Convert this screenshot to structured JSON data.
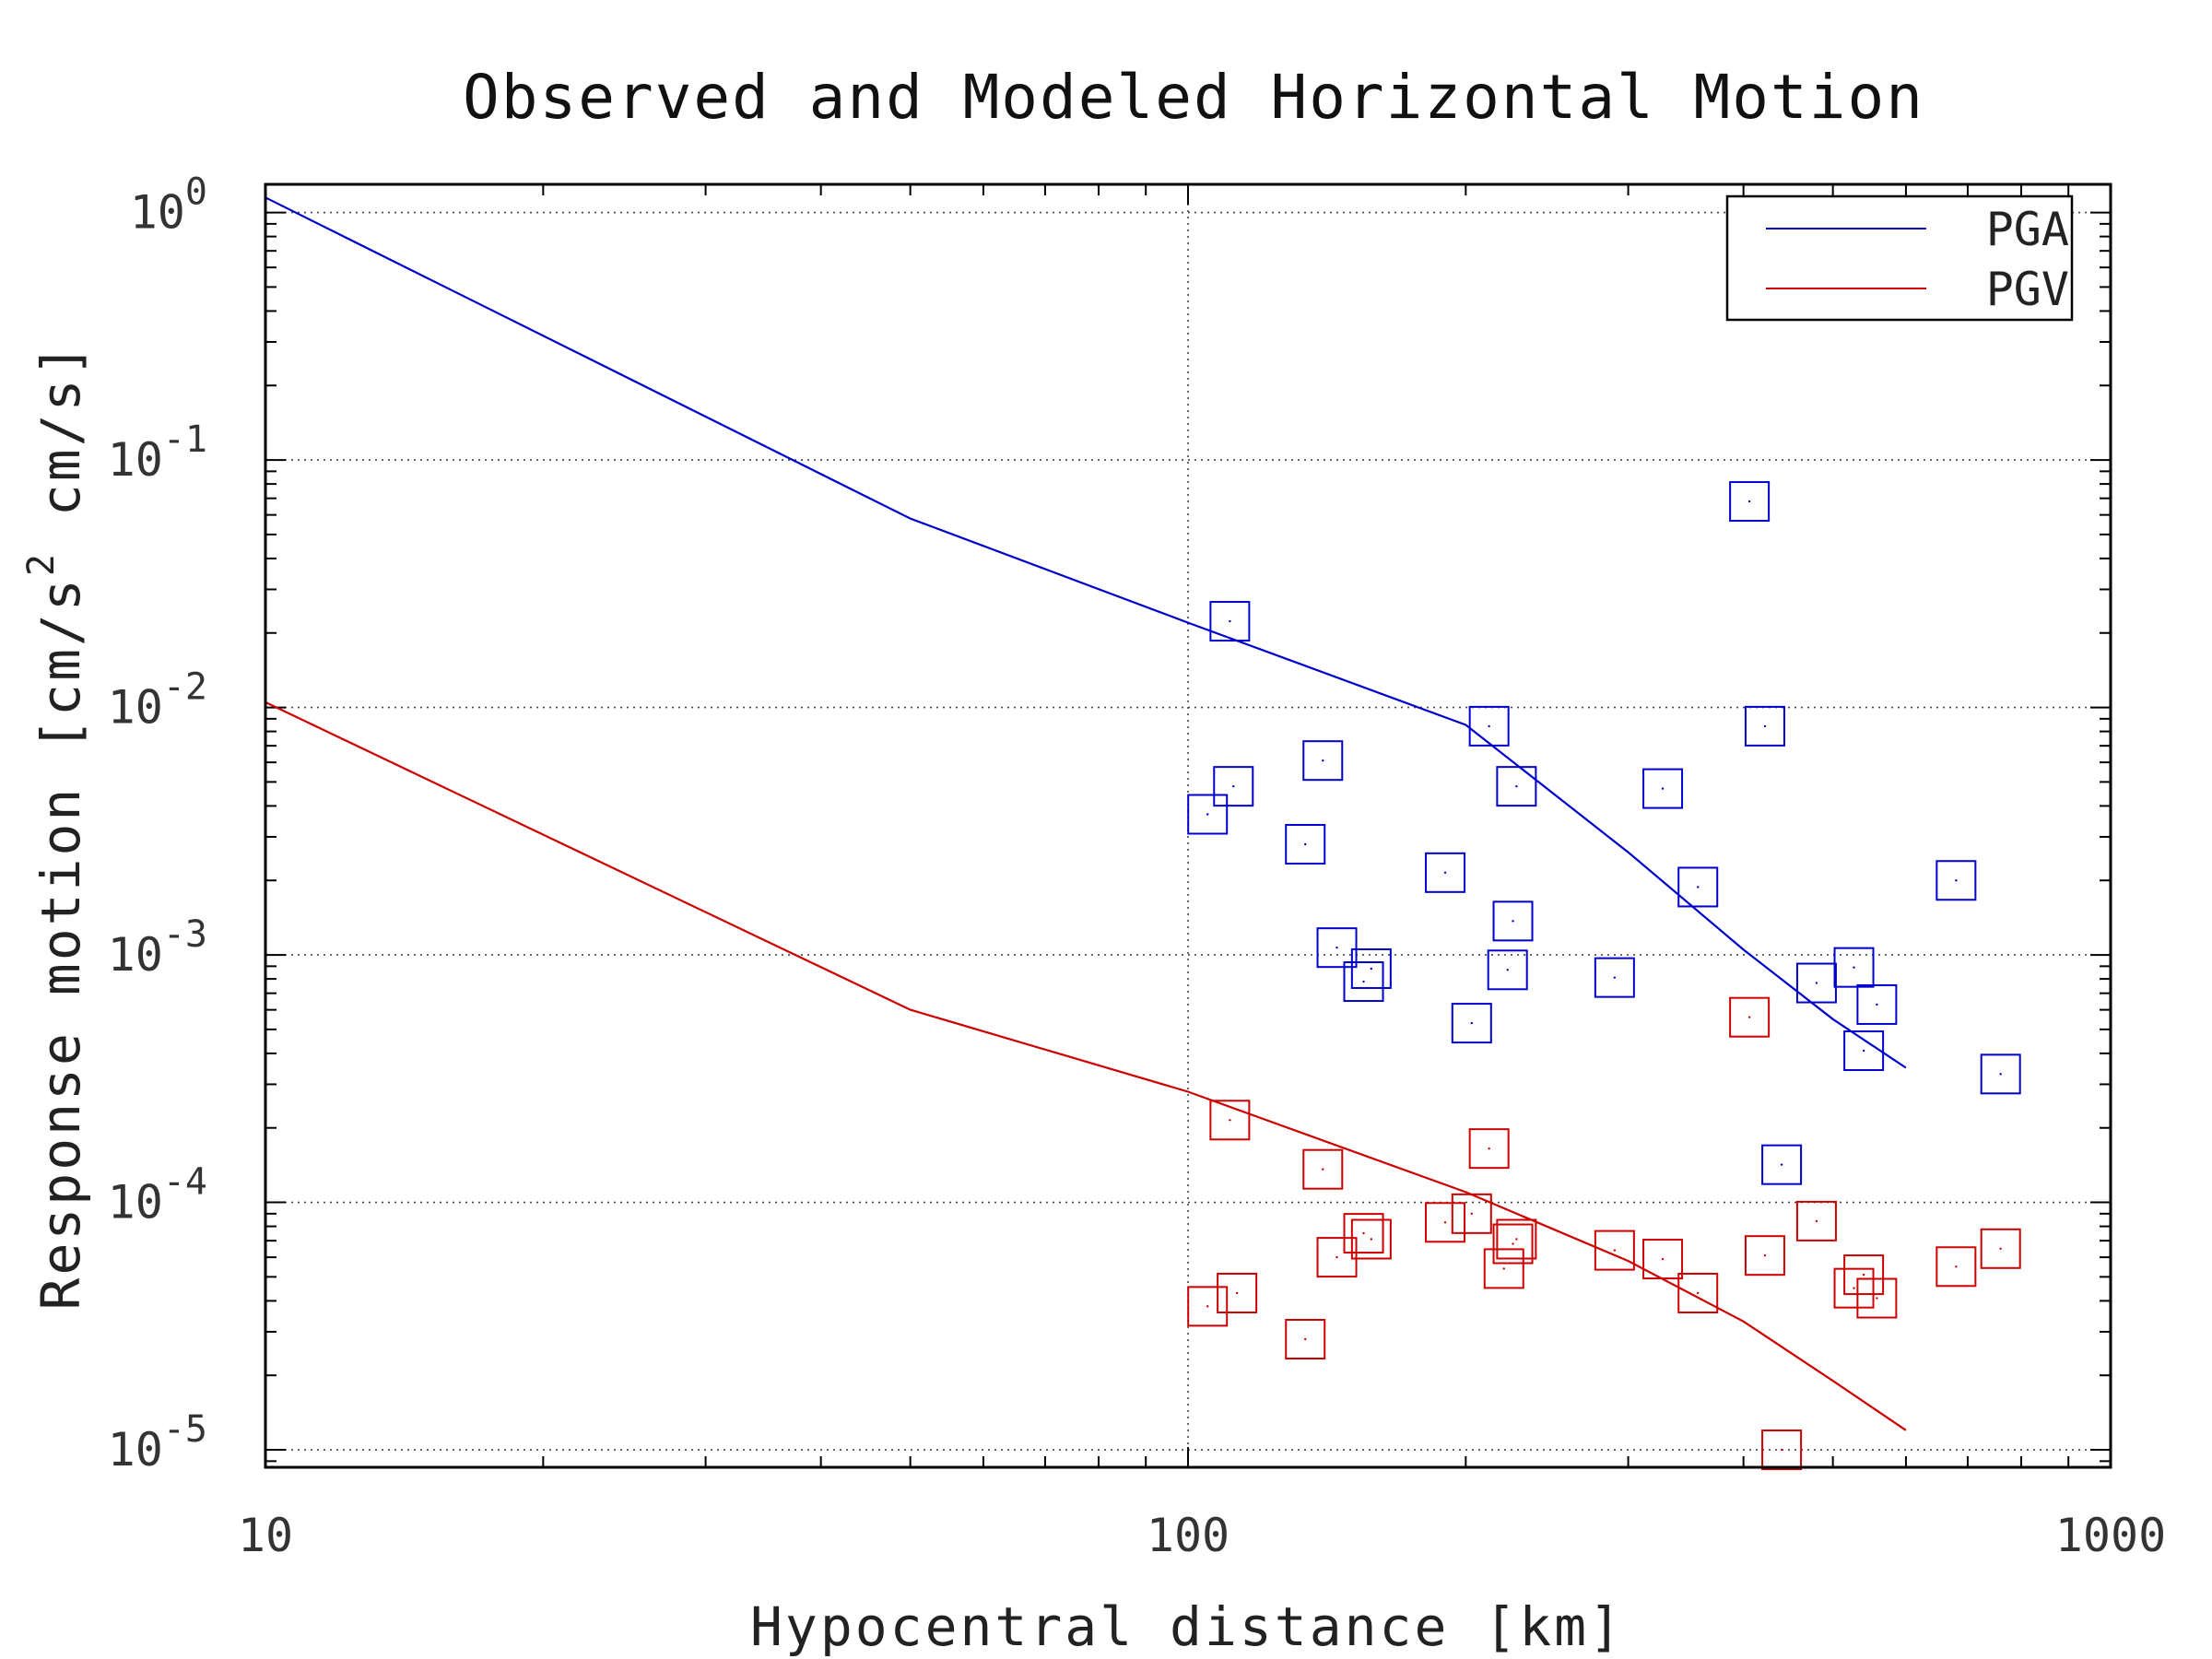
{
  "chart_data": {
    "type": "scatter",
    "title": "Observed and Modeled Horizontal Motion",
    "xlabel": "Hypocentral distance [km]",
    "ylabel_parts": {
      "main": "Response motion  [cm/s",
      "sup": "2",
      "tail": "  cm/s]"
    },
    "x_scale": "log",
    "y_scale": "log",
    "xlim": [
      10,
      1000
    ],
    "ylim": [
      8.5e-06,
      1.3
    ],
    "x_ticks": [
      {
        "value": 10,
        "label": "10"
      },
      {
        "value": 100,
        "label": "100"
      },
      {
        "value": 1000,
        "label": "1000"
      }
    ],
    "y_ticks": [
      {
        "value": 1,
        "base": "10",
        "exp": "0"
      },
      {
        "value": 0.1,
        "base": "10",
        "exp": "-1"
      },
      {
        "value": 0.01,
        "base": "10",
        "exp": "-2"
      },
      {
        "value": 0.001,
        "base": "10",
        "exp": "-3"
      },
      {
        "value": 0.0001,
        "base": "10",
        "exp": "-4"
      },
      {
        "value": 1e-05,
        "base": "10",
        "exp": "-5"
      }
    ],
    "grid": true,
    "legend_position": "top-right",
    "legend": [
      {
        "label": "PGA",
        "color": "#0000cc"
      },
      {
        "label": "PGV",
        "color": "#cc0000"
      }
    ],
    "model_lines": [
      {
        "name": "PGA",
        "color": "#0000cc",
        "x": [
          10,
          50,
          100,
          200,
          300,
          400,
          500,
          600
        ],
        "y": [
          1.15,
          0.058,
          0.022,
          0.0085,
          0.0026,
          0.00105,
          0.00055,
          0.00035
        ]
      },
      {
        "name": "PGV",
        "color": "#cc0000",
        "x": [
          10,
          50,
          100,
          200,
          300,
          400,
          500,
          600
        ],
        "y": [
          0.0105,
          0.0006,
          0.00028,
          0.00011,
          5.8e-05,
          3.3e-05,
          1.9e-05,
          1.2e-05
        ]
      }
    ],
    "observed": [
      {
        "name": "PGA",
        "color": "#0000cc",
        "points": [
          [
            105,
            0.0037
          ],
          [
            111,
            0.0223
          ],
          [
            112,
            0.0048
          ],
          [
            134,
            0.0028
          ],
          [
            140,
            0.0061
          ],
          [
            145,
            0.00107
          ],
          [
            155,
            0.00078
          ],
          [
            158,
            0.00088
          ],
          [
            190,
            0.00215
          ],
          [
            203,
            0.00053
          ],
          [
            212,
            0.0084
          ],
          [
            222,
            0.00087
          ],
          [
            225,
            0.00137
          ],
          [
            227,
            0.0048
          ],
          [
            290,
            0.00081
          ],
          [
            327,
            0.0047
          ],
          [
            357,
            0.00188
          ],
          [
            406,
            0.068
          ],
          [
            422,
            0.0084
          ],
          [
            440,
            0.000142
          ],
          [
            480,
            0.00077
          ],
          [
            527,
            0.00089
          ],
          [
            540,
            0.00041
          ],
          [
            558,
            0.00063
          ],
          [
            680,
            0.002
          ],
          [
            760,
            0.00033
          ]
        ]
      },
      {
        "name": "PGV",
        "color": "#cc0000",
        "points": [
          [
            105,
            3.8e-05
          ],
          [
            111,
            0.000215
          ],
          [
            113,
            4.3e-05
          ],
          [
            134,
            2.8e-05
          ],
          [
            140,
            0.000136
          ],
          [
            145,
            6e-05
          ],
          [
            155,
            7.5e-05
          ],
          [
            158,
            7.1e-05
          ],
          [
            190,
            8.3e-05
          ],
          [
            203,
            9e-05
          ],
          [
            212,
            0.000165
          ],
          [
            220,
            5.4e-05
          ],
          [
            225,
            6.8e-05
          ],
          [
            227,
            7.1e-05
          ],
          [
            290,
            6.4e-05
          ],
          [
            327,
            5.9e-05
          ],
          [
            357,
            4.3e-05
          ],
          [
            406,
            0.00056
          ],
          [
            422,
            6.1e-05
          ],
          [
            440,
            1e-05
          ],
          [
            480,
            8.4e-05
          ],
          [
            527,
            4.5e-05
          ],
          [
            540,
            5.1e-05
          ],
          [
            558,
            4.1e-05
          ],
          [
            680,
            5.5e-05
          ],
          [
            760,
            6.5e-05
          ]
        ]
      }
    ]
  }
}
